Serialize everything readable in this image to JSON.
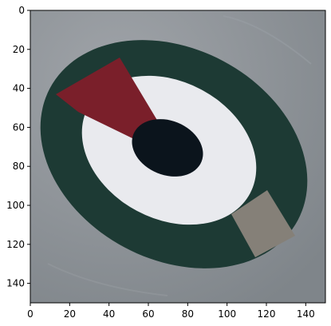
{
  "axes": {
    "x_ticks": [
      0,
      20,
      40,
      60,
      80,
      100,
      120,
      140
    ],
    "y_ticks": [
      0,
      20,
      40,
      60,
      80,
      100,
      120,
      140
    ],
    "x_range": [
      0,
      150
    ],
    "y_range": [
      0,
      150
    ],
    "y_inverted": true
  },
  "image": {
    "subject": "circular emblem",
    "colors": {
      "background": "#8c9196",
      "outer_ring": "#1d3a34",
      "inner_ring": "#e9eaee",
      "center": "#0b141c",
      "red_segment": "#7a1f2a",
      "gray_patch": "#858078"
    }
  }
}
